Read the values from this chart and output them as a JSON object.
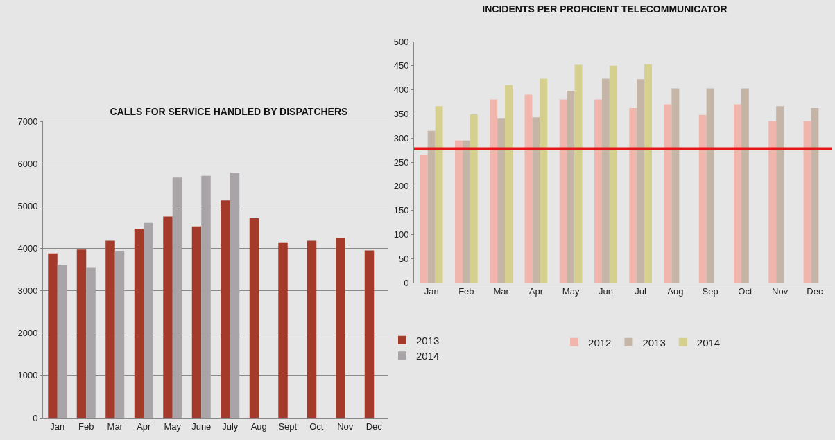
{
  "chart_data": [
    {
      "type": "bar",
      "title": "CALLS FOR SERVICE HANDLED BY DISPATCHERS",
      "categories": [
        "Jan",
        "Feb",
        "Mar",
        "Apr",
        "May",
        "June",
        "July",
        "Aug",
        "Sept",
        "Oct",
        "Nov",
        "Dec"
      ],
      "series": [
        {
          "name": "2013",
          "color": "#a33a2a",
          "values": [
            3880,
            3970,
            4180,
            4460,
            4750,
            4520,
            5130,
            4710,
            4140,
            4180,
            4240,
            3950
          ]
        },
        {
          "name": "2014",
          "color": "#a8a4a8",
          "values": [
            3610,
            3540,
            3940,
            4600,
            5670,
            5710,
            5790,
            null,
            null,
            null,
            null,
            null
          ]
        }
      ],
      "ylim": [
        0,
        7000
      ],
      "yticks": [
        0,
        1000,
        2000,
        3000,
        4000,
        5000,
        6000,
        7000
      ],
      "grid": "y",
      "legend": "right"
    },
    {
      "type": "bar",
      "title": "INCIDENTS PER PROFICIENT TELECOMMUNICATOR",
      "categories": [
        "Jan",
        "Feb",
        "Mar",
        "Apr",
        "May",
        "Jun",
        "Jul",
        "Aug",
        "Sep",
        "Oct",
        "Nov",
        "Dec"
      ],
      "series": [
        {
          "name": "2012",
          "color": "#f0b5ac",
          "values": [
            265,
            295,
            380,
            390,
            380,
            380,
            362,
            370,
            348,
            370,
            335,
            335
          ]
        },
        {
          "name": "2013",
          "color": "#c4b5a6",
          "values": [
            315,
            295,
            340,
            343,
            398,
            423,
            422,
            403,
            403,
            403,
            366,
            362
          ]
        },
        {
          "name": "2014",
          "color": "#d6d08e",
          "values": [
            366,
            349,
            410,
            423,
            452,
            450,
            453,
            null,
            null,
            null,
            null,
            null
          ]
        }
      ],
      "ylim": [
        0,
        500
      ],
      "yticks": [
        0,
        50,
        100,
        150,
        200,
        250,
        300,
        350,
        400,
        450,
        500
      ],
      "grid": false,
      "legend": "bottom",
      "ref_lines": [
        {
          "axis": "y",
          "value": 278,
          "color": "#e8141c",
          "line_style": "solid"
        }
      ]
    }
  ]
}
